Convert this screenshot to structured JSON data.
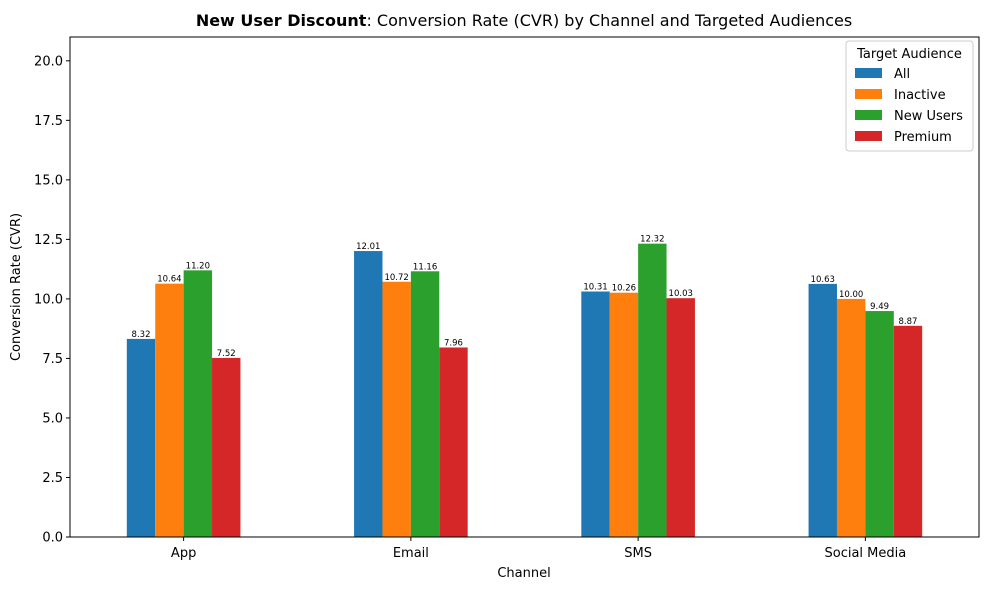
{
  "chart_data": {
    "type": "bar",
    "title_bold": "New User Discount",
    "title_rest": ": Conversion Rate (CVR) by Channel and Targeted Audiences",
    "xlabel": "Channel",
    "ylabel": "Conversion Rate (CVR)",
    "ylim": [
      0,
      21
    ],
    "yticks": [
      "0.0",
      "2.5",
      "5.0",
      "7.5",
      "10.0",
      "12.5",
      "15.0",
      "17.5",
      "20.0"
    ],
    "ytick_values": [
      0,
      2.5,
      5,
      7.5,
      10,
      12.5,
      15,
      17.5,
      20
    ],
    "categories": [
      "App",
      "Email",
      "SMS",
      "Social Media"
    ],
    "legend_title": "Target Audience",
    "legend_position": "top-right",
    "grid": false,
    "series": [
      {
        "name": "All",
        "color": "#1f77b4",
        "values": [
          8.32,
          12.01,
          10.31,
          10.63
        ],
        "labels": [
          "8.32",
          "12.01",
          "10.31",
          "10.63"
        ]
      },
      {
        "name": "Inactive",
        "color": "#ff7f0e",
        "values": [
          10.64,
          10.72,
          10.26,
          10.0
        ],
        "labels": [
          "10.64",
          "10.72",
          "10.26",
          "10.00"
        ]
      },
      {
        "name": "New Users",
        "color": "#2ca02c",
        "values": [
          11.2,
          11.16,
          12.32,
          9.49
        ],
        "labels": [
          "11.20",
          "11.16",
          "12.32",
          "9.49"
        ]
      },
      {
        "name": "Premium",
        "color": "#d62728",
        "values": [
          7.52,
          7.96,
          10.03,
          8.87
        ],
        "labels": [
          "7.52",
          "7.96",
          "10.03",
          "8.87"
        ]
      }
    ]
  }
}
